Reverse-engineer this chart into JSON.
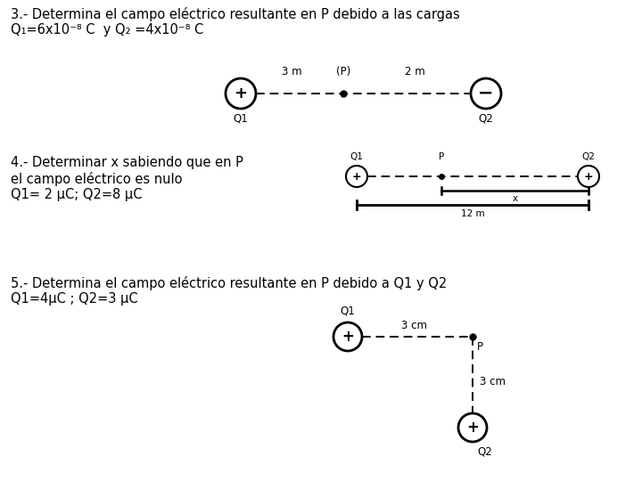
{
  "title_3": "3.- Determina el campo eléctrico resultante en P debido a las cargas",
  "subtitle_3": "Q₁=6x10⁻⁸ C  y Q₂ =4x10⁻⁸ C",
  "title_4a": "4.- Determinar x sabiendo que en P",
  "title_4b": "el campo eléctrico es nulo",
  "title_4c": "Q1= 2 μC; Q2=8 μC",
  "title_5": "5.- Determina el campo eléctrico resultante en P debido a Q1 y Q2",
  "subtitle_5": "Q1=4μC ; Q2=3 μC",
  "bg_color": "#ffffff",
  "text_color": "#000000",
  "fontsize_main": 10.5,
  "fontsize_label": 8.5,
  "fontsize_small": 7.5
}
